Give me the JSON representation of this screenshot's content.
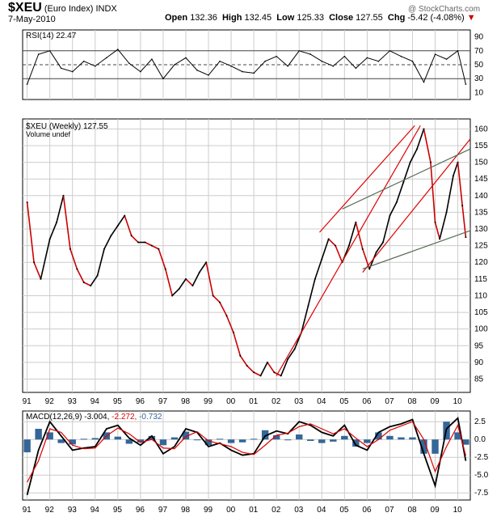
{
  "header": {
    "symbol": "$XEU",
    "name": "(Euro Index)",
    "exchange": "INDX",
    "date": "7-May-2010",
    "open_label": "Open",
    "open": "132.36",
    "high_label": "High",
    "high": "132.45",
    "low_label": "Low",
    "low": "125.33",
    "close_label": "Close",
    "close": "127.55",
    "chg_label": "Chg",
    "chg": "-5.42 (-4.08%)",
    "watermark": "@ StockCharts.com"
  },
  "colors": {
    "price_up": "#000000",
    "price_down": "#cc0000",
    "trend_red": "#dd0000",
    "trend_green": "#556b55",
    "macd_line": "#000000",
    "signal_line": "#dd0000",
    "histogram": "#336699",
    "grid": "#cccccc",
    "down_arrow": "#cc0000"
  },
  "chart_data": [
    {
      "type": "line",
      "panel": "RSI",
      "legend": "RSI(14) 22.47",
      "y_ticks": [
        90,
        70,
        50,
        30,
        10
      ],
      "ylim": [
        0,
        100
      ],
      "reference_lines": [
        70,
        50,
        30
      ],
      "x": [
        1991.0,
        1991.5,
        1992.0,
        1992.5,
        1993.0,
        1993.5,
        1994.0,
        1994.5,
        1995.0,
        1995.5,
        1996.0,
        1996.5,
        1997.0,
        1997.5,
        1998.0,
        1998.5,
        1999.0,
        1999.5,
        2000.0,
        2000.5,
        2001.0,
        2001.5,
        2002.0,
        2002.5,
        2003.0,
        2003.5,
        2004.0,
        2004.5,
        2005.0,
        2005.5,
        2006.0,
        2006.5,
        2007.0,
        2007.5,
        2008.0,
        2008.5,
        2009.0,
        2009.5,
        2010.0,
        2010.35
      ],
      "values": [
        22,
        65,
        70,
        45,
        40,
        55,
        48,
        60,
        72,
        52,
        40,
        58,
        30,
        50,
        60,
        42,
        35,
        55,
        48,
        40,
        38,
        55,
        62,
        48,
        70,
        65,
        55,
        48,
        62,
        45,
        60,
        55,
        70,
        62,
        55,
        25,
        65,
        58,
        70,
        22
      ]
    },
    {
      "type": "line",
      "panel": "Price",
      "legend": "$XEU (Weekly) 127.55",
      "volume_legend": "Volume undef",
      "y_ticks": [
        160,
        155,
        150,
        145,
        140,
        135,
        130,
        125,
        120,
        115,
        110,
        105,
        100,
        95,
        90,
        85
      ],
      "ylim": [
        81,
        163
      ],
      "x_ticks": [
        "91",
        "92",
        "93",
        "94",
        "95",
        "96",
        "97",
        "98",
        "99",
        "00",
        "01",
        "02",
        "03",
        "04",
        "05",
        "06",
        "07",
        "08",
        "09",
        "10"
      ],
      "x": [
        1991.0,
        1991.3,
        1991.6,
        1992.0,
        1992.3,
        1992.6,
        1992.9,
        1993.2,
        1993.5,
        1993.8,
        1994.1,
        1994.4,
        1994.7,
        1995.0,
        1995.3,
        1995.6,
        1995.9,
        1996.2,
        1996.5,
        1996.8,
        1997.1,
        1997.4,
        1997.7,
        1998.0,
        1998.3,
        1998.6,
        1998.9,
        1999.2,
        1999.5,
        1999.8,
        2000.1,
        2000.4,
        2000.7,
        2001.0,
        2001.3,
        2001.6,
        2001.9,
        2002.2,
        2002.5,
        2002.8,
        2003.1,
        2003.4,
        2003.7,
        2004.0,
        2004.3,
        2004.6,
        2004.9,
        2005.2,
        2005.5,
        2005.8,
        2006.1,
        2006.4,
        2006.7,
        2007.0,
        2007.3,
        2007.6,
        2007.9,
        2008.2,
        2008.5,
        2008.8,
        2009.0,
        2009.2,
        2009.5,
        2009.8,
        2010.0,
        2010.2,
        2010.35
      ],
      "values": [
        138,
        120,
        115,
        127,
        132,
        140,
        124,
        118,
        114,
        113,
        116,
        124,
        128,
        131,
        134,
        128,
        126,
        126,
        125,
        124,
        118,
        110,
        112,
        115,
        113,
        117,
        120,
        110,
        108,
        104,
        99,
        92,
        89,
        87,
        86,
        90,
        87,
        86,
        91,
        94,
        99,
        107,
        115,
        121,
        127,
        125,
        120,
        125,
        132,
        124,
        118,
        123,
        126,
        134,
        138,
        144,
        150,
        154,
        160,
        150,
        132,
        127,
        135,
        146,
        150,
        137,
        127.55
      ]
    },
    {
      "type": "line",
      "panel": "MACD",
      "legend_label": "MACD(12,26,9)",
      "legend_values": [
        "-3.004",
        "-2.272",
        "-0.732"
      ],
      "y_ticks": [
        "2.5",
        "0.0",
        "-2.5",
        "-5.0",
        "-7.5"
      ],
      "ylim": [
        -8.5,
        4
      ],
      "x": [
        1991.0,
        1991.5,
        1992.0,
        1992.5,
        1993.0,
        1993.5,
        1994.0,
        1994.5,
        1995.0,
        1995.5,
        1996.0,
        1996.5,
        1997.0,
        1997.5,
        1998.0,
        1998.5,
        1999.0,
        1999.5,
        2000.0,
        2000.5,
        2001.0,
        2001.5,
        2002.0,
        2002.5,
        2003.0,
        2003.5,
        2004.0,
        2004.5,
        2005.0,
        2005.5,
        2006.0,
        2006.5,
        2007.0,
        2007.5,
        2008.0,
        2008.5,
        2009.0,
        2009.5,
        2010.0,
        2010.35
      ],
      "series": [
        {
          "values": [
            -7.8,
            -1.5,
            2.5,
            0.5,
            -1.5,
            -1.2,
            -1.0,
            1.5,
            2.0,
            0.2,
            -0.8,
            0.5,
            -2.0,
            -1.0,
            1.5,
            1.0,
            -1.0,
            -0.5,
            -1.5,
            -2.2,
            -2.0,
            0.5,
            1.2,
            0.8,
            2.5,
            2.0,
            1.0,
            0.5,
            2.0,
            -0.8,
            -1.5,
            1.0,
            1.8,
            2.2,
            2.8,
            -2.0,
            -6.5,
            1.5,
            3.0,
            -3.004
          ]
        },
        {
          "values": [
            -6.0,
            -3.0,
            1.5,
            1.0,
            -0.8,
            -1.3,
            -1.2,
            0.5,
            1.6,
            0.8,
            -0.4,
            0.0,
            -1.2,
            -1.3,
            0.4,
            1.1,
            -0.2,
            -0.6,
            -1.0,
            -1.8,
            -2.1,
            -0.8,
            0.6,
            0.9,
            1.8,
            2.2,
            1.5,
            0.8,
            1.5,
            0.2,
            -1.0,
            0.0,
            1.3,
            1.9,
            2.5,
            0.0,
            -4.5,
            -1.0,
            2.0,
            -2.272
          ]
        }
      ],
      "histogram": [
        -1.8,
        1.5,
        1.0,
        -0.5,
        -0.7,
        0.1,
        0.2,
        1.0,
        0.4,
        -0.6,
        -0.4,
        0.5,
        -0.8,
        0.3,
        1.1,
        -0.1,
        -0.8,
        0.1,
        -0.5,
        -0.4,
        0.1,
        1.3,
        0.6,
        -0.1,
        0.7,
        -0.2,
        -0.5,
        -0.3,
        0.5,
        -1.0,
        -0.5,
        1.0,
        0.5,
        0.3,
        0.3,
        -2.0,
        -2.0,
        2.5,
        1.0,
        -0.732
      ]
    }
  ]
}
